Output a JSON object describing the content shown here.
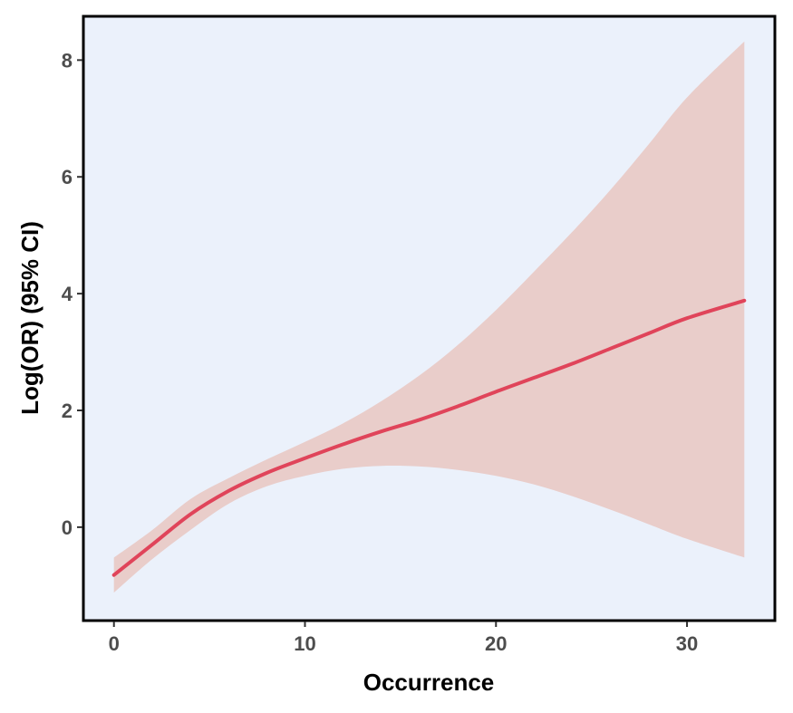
{
  "chart_data": {
    "type": "line",
    "xlabel": "Occurrence",
    "ylabel": "Log(OR) (95% CI)",
    "xlim": [
      -1.6,
      34.6
    ],
    "ylim": [
      -1.6,
      8.75
    ],
    "x_ticks": [
      0,
      10,
      20,
      30
    ],
    "y_ticks": [
      0,
      2,
      4,
      6,
      8
    ],
    "grid": false,
    "legend": "none",
    "colors": {
      "panel_background": "#ebf1fb",
      "line": "#e0445a",
      "band": "#e9cdca",
      "border": "#000000",
      "tick_label": "#4d4d4d"
    },
    "series": [
      {
        "x": [
          0,
          2,
          4,
          6,
          8,
          10,
          12,
          14,
          16,
          18,
          20,
          22,
          24,
          26,
          28,
          30,
          33
        ],
        "y": [
          -0.82,
          -0.3,
          0.22,
          0.62,
          0.93,
          1.18,
          1.42,
          1.64,
          1.84,
          2.07,
          2.32,
          2.56,
          2.8,
          3.06,
          3.32,
          3.58,
          3.88
        ],
        "lower": [
          -1.12,
          -0.55,
          -0.05,
          0.4,
          0.7,
          0.88,
          1.0,
          1.05,
          1.04,
          0.98,
          0.88,
          0.73,
          0.53,
          0.3,
          0.05,
          -0.2,
          -0.52
        ],
        "upper": [
          -0.52,
          -0.05,
          0.48,
          0.84,
          1.16,
          1.46,
          1.78,
          2.16,
          2.6,
          3.12,
          3.72,
          4.38,
          5.06,
          5.78,
          6.56,
          7.36,
          8.32
        ]
      }
    ]
  }
}
